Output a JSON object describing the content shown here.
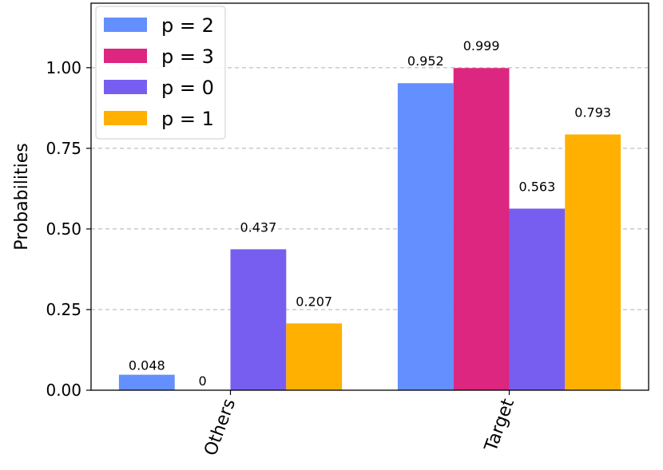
{
  "chart_data": {
    "type": "bar",
    "categories": [
      "Others",
      "Target"
    ],
    "series": [
      {
        "name": "p = 2",
        "color": "#648fff",
        "values": [
          0.048,
          0.952
        ]
      },
      {
        "name": "p = 3",
        "color": "#dc267f",
        "values": [
          0,
          0.999
        ]
      },
      {
        "name": "p = 0",
        "color": "#785ef0",
        "values": [
          0.437,
          0.563
        ]
      },
      {
        "name": "p = 1",
        "color": "#ffb000",
        "values": [
          0.207,
          0.793
        ]
      }
    ],
    "data_labels": [
      [
        "0.048",
        "0.952"
      ],
      [
        "0",
        "0.999"
      ],
      [
        "0.437",
        "0.563"
      ],
      [
        "0.207",
        "0.793"
      ]
    ],
    "ylabel": "Probabilities",
    "ylim": [
      0,
      1.2
    ],
    "yticks": [
      0,
      0.25,
      0.5,
      0.75,
      1.0
    ],
    "ytick_labels": [
      "0.00",
      "0.25",
      "0.50",
      "0.75",
      "1.00"
    ],
    "grid": "horizontal dashed",
    "legend_position": "top-left",
    "xtick_rotation": -70
  }
}
